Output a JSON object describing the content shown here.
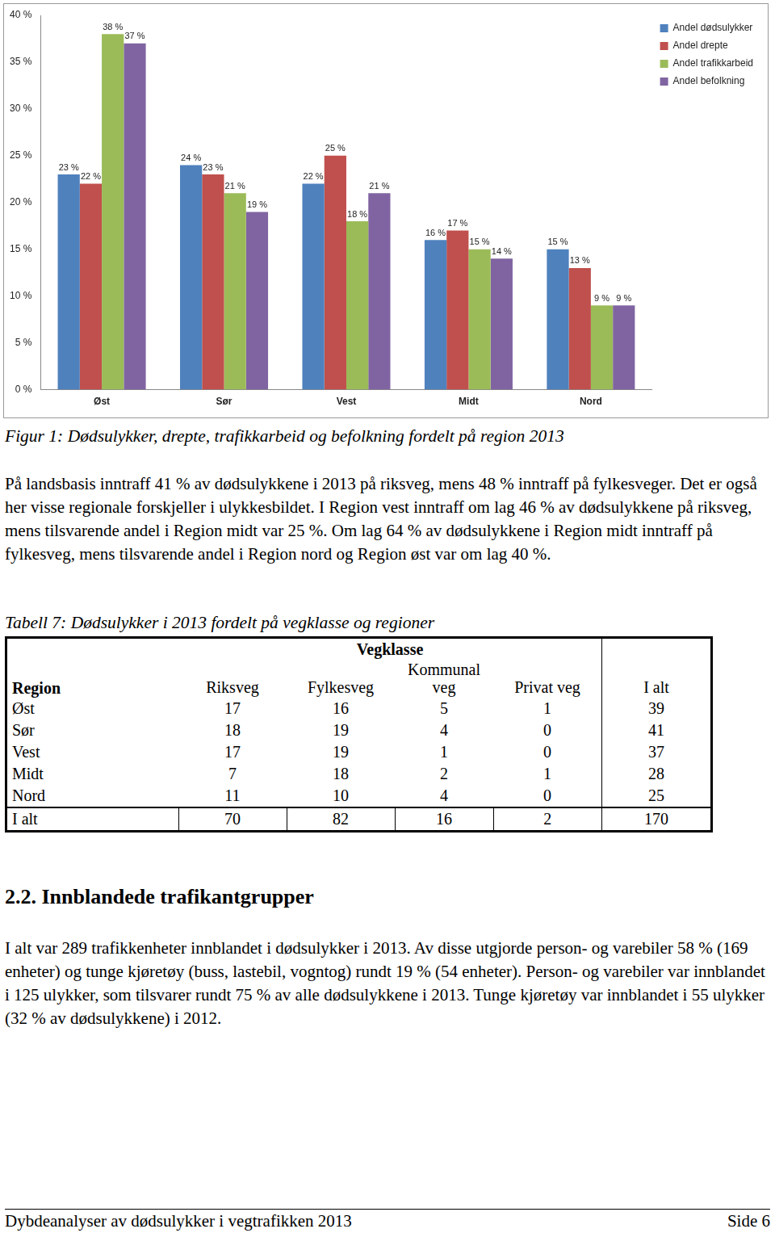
{
  "chart_data": {
    "type": "bar",
    "categories": [
      "Øst",
      "Sør",
      "Vest",
      "Midt",
      "Nord"
    ],
    "series": [
      {
        "name": "Andel dødsulykker",
        "color": "#4f81bd",
        "values": [
          23,
          24,
          22,
          16,
          15
        ],
        "value_labels": [
          "23 %",
          "24 %",
          "22 %",
          "16 %",
          "15 %"
        ]
      },
      {
        "name": "Andel drepte",
        "color": "#c0504d",
        "values": [
          22,
          23,
          25,
          17,
          13
        ],
        "value_labels": [
          "22 %",
          "23 %",
          "25 %",
          "17 %",
          "13 %"
        ]
      },
      {
        "name": "Andel trafikkarbeid",
        "color": "#9bbb59",
        "values": [
          38,
          21,
          18,
          15,
          9
        ],
        "value_labels": [
          "38 %",
          "21 %",
          "18 %",
          "15 %",
          "9 %"
        ]
      },
      {
        "name": "Andel befolkning",
        "color": "#8064a2",
        "values": [
          37,
          19,
          21,
          14,
          9
        ],
        "value_labels": [
          "37 %",
          "19 %",
          "21 %",
          "14 %",
          "9 %"
        ]
      }
    ],
    "ylim": [
      0,
      40
    ],
    "yticks": [
      {
        "value": 0,
        "label": "0 %"
      },
      {
        "value": 5,
        "label": "5 %"
      },
      {
        "value": 10,
        "label": "10 %"
      },
      {
        "value": 15,
        "label": "15 %"
      },
      {
        "value": 20,
        "label": "20 %"
      },
      {
        "value": 25,
        "label": "25 %"
      },
      {
        "value": 30,
        "label": "30 %"
      },
      {
        "value": 35,
        "label": "35 %"
      },
      {
        "value": 40,
        "label": "40 %"
      }
    ],
    "grid": false,
    "legend": "right",
    "data_labels": true
  },
  "caption": "Figur 1: Dødsulykker, drepte, trafikkarbeid og befolkning fordelt på region 2013",
  "paragraph_1": "På landsbasis inntraff 41 % av dødsulykkene i 2013 på riksveg, mens 48 % inntraff på fylkesveger. Det er også her visse regionale forskjeller i ulykkesbildet. I Region vest inntraff om lag 46 % av dødsulykkene på riksveg, mens tilsvarende andel i Region midt var 25 %. Om lag 64 % av dødsulykkene i Region midt inntraff på fylkesveg, mens tilsvarende andel i Region nord og Region øst var om lag 40 %.",
  "table": {
    "caption": "Tabell 7: Dødsulykker i 2013 fordelt på vegklasse og regioner",
    "group_header": "Vegklasse",
    "columns": [
      "Region",
      "Riksveg",
      "Fylkesveg",
      "Kommunal veg",
      "Privat veg",
      "I alt"
    ],
    "rows": [
      [
        "Øst",
        17,
        16,
        5,
        1,
        39
      ],
      [
        "Sør",
        18,
        19,
        4,
        0,
        41
      ],
      [
        "Vest",
        17,
        19,
        1,
        0,
        37
      ],
      [
        "Midt",
        7,
        18,
        2,
        1,
        28
      ],
      [
        "Nord",
        11,
        10,
        4,
        0,
        25
      ]
    ],
    "total": [
      "I alt",
      70,
      82,
      16,
      2,
      170
    ]
  },
  "heading": "2.2. Innblandede trafikantgrupper",
  "paragraph_2": "I alt var 289 trafikkenheter innblandet i dødsulykker i 2013. Av disse utgjorde person- og varebiler 58 % (169 enheter) og tunge kjøretøy (buss, lastebil, vogntog) rundt 19 % (54 enheter). Person- og varebiler var innblandet i 125 ulykker, som tilsvarer rundt 75 % av alle dødsulykkene i 2013. Tunge kjøretøy var innblandet i 55 ulykker (32 % av dødsulykkene) i 2012.",
  "footer": {
    "left": "Dybdeanalyser av dødsulykker i vegtrafikken 2013",
    "right": "Side 6"
  }
}
